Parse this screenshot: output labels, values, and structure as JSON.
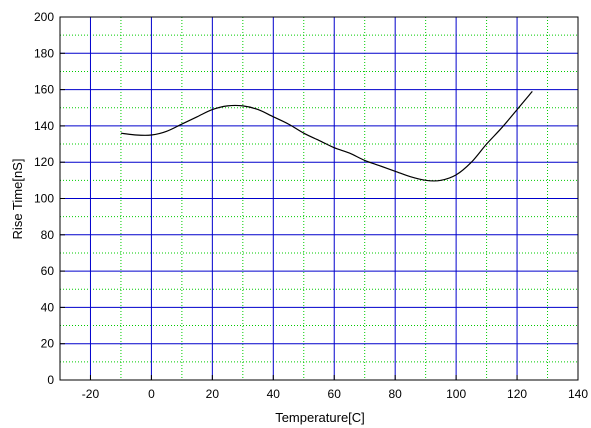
{
  "chart_data": {
    "type": "line",
    "title": "",
    "xlabel": "Temperature[C]",
    "ylabel": "Rise Time[nS]",
    "xlim": [
      -30,
      140
    ],
    "ylim": [
      0,
      200
    ],
    "x_ticks": [
      -20,
      0,
      20,
      40,
      60,
      80,
      100,
      120,
      140
    ],
    "y_ticks": [
      0,
      20,
      40,
      60,
      80,
      100,
      120,
      140,
      160,
      180,
      200
    ],
    "grid": {
      "major": true,
      "minor": true,
      "major_color": "#0000cc",
      "minor_color": "#00cc00",
      "minor_style": "dotted"
    },
    "series": [
      {
        "color": "#000000",
        "x": [
          -10,
          -5,
          0,
          5,
          10,
          15,
          20,
          25,
          30,
          35,
          40,
          45,
          50,
          55,
          60,
          65,
          70,
          75,
          80,
          85,
          90,
          95,
          100,
          105,
          110,
          115,
          120,
          125
        ],
        "y": [
          136,
          135,
          135,
          137,
          141,
          145,
          149,
          151,
          151,
          149,
          145,
          141,
          136,
          132,
          128,
          125,
          121,
          118,
          115,
          112,
          110,
          110,
          113,
          120,
          130,
          139,
          149,
          159
        ]
      }
    ]
  }
}
